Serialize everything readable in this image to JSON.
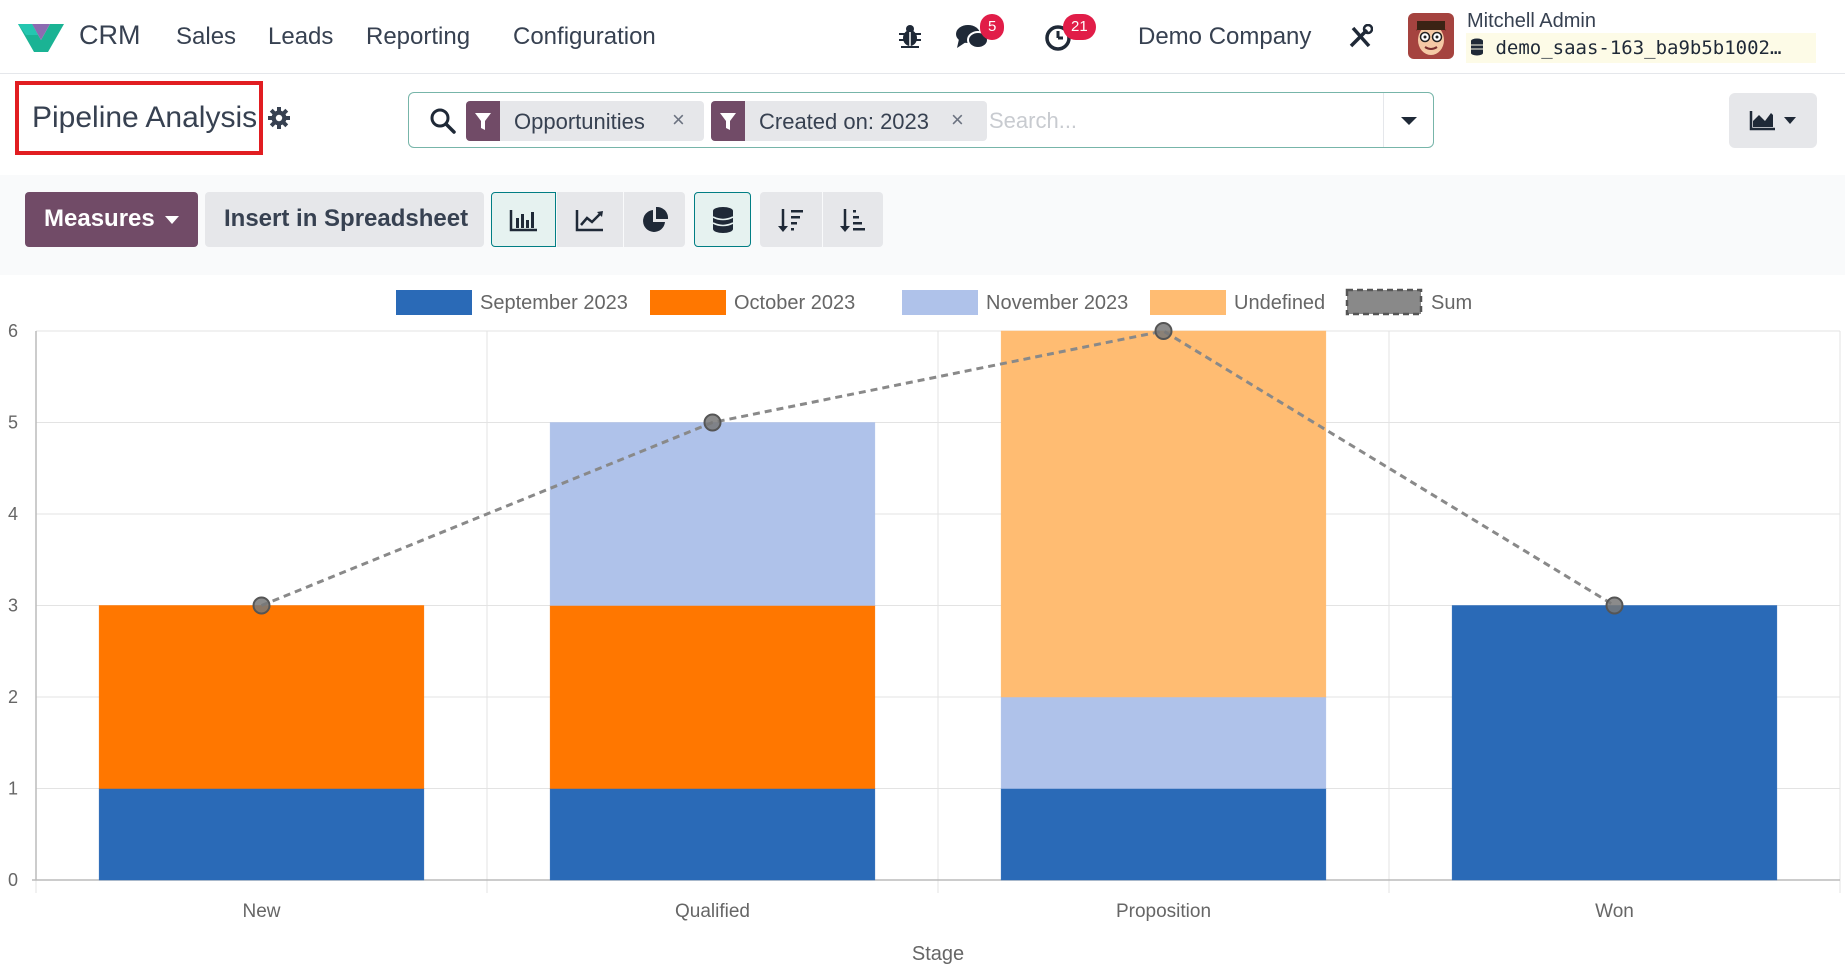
{
  "navbar": {
    "app_name": "CRM",
    "menu": [
      "Sales",
      "Leads",
      "Reporting",
      "Configuration"
    ],
    "messages_count": "5",
    "activities_count": "21",
    "company": "Demo Company",
    "user_name": "Mitchell Admin",
    "database": "demo_saas-163_ba9b5b1002…"
  },
  "control_panel": {
    "title": "Pipeline Analysis",
    "search": {
      "facets": [
        {
          "label": "Opportunities"
        },
        {
          "label": "Created on: 2023"
        }
      ],
      "placeholder": "Search..."
    }
  },
  "toolbar": {
    "measures_label": "Measures",
    "insert_label": "Insert in Spreadsheet"
  },
  "colors": {
    "brand": "#714b67",
    "active_border": "#017e84",
    "sep_2023": "#2a6ab7",
    "oct_2023": "#ff7700",
    "nov_2023": "#afc2ea",
    "undefined": "#ffbc72",
    "sum": "#898989"
  },
  "chart_data": {
    "type": "bar",
    "stacked": true,
    "categories": [
      "New",
      "Qualified",
      "Proposition",
      "Won"
    ],
    "series": [
      {
        "name": "September 2023",
        "values": [
          1,
          1,
          1,
          3
        ],
        "color": "#2a6ab7"
      },
      {
        "name": "October 2023",
        "values": [
          2,
          2,
          0,
          0
        ],
        "color": "#ff7700"
      },
      {
        "name": "November 2023",
        "values": [
          0,
          2,
          1,
          0
        ],
        "color": "#afc2ea"
      },
      {
        "name": "Undefined",
        "values": [
          0,
          0,
          4,
          0
        ],
        "color": "#ffbc72"
      }
    ],
    "line": {
      "name": "Sum",
      "values": [
        3,
        5,
        6,
        3
      ],
      "style": "dashed",
      "color": "#898989"
    },
    "xlabel": "Stage",
    "ylabel": "",
    "ylim": [
      0,
      6
    ],
    "yticks": [
      0,
      1,
      2,
      3,
      4,
      5,
      6
    ],
    "grid": true,
    "legend": "top"
  }
}
